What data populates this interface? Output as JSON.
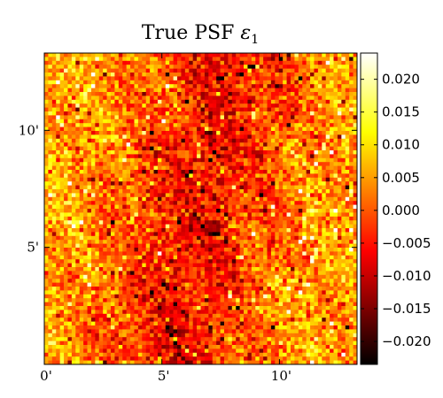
{
  "chart_data": {
    "type": "heatmap",
    "title_main": "True PSF ",
    "title_symbol": "ε",
    "title_subscript": "1",
    "x_ticks": [
      {
        "value": 0,
        "label": "0'"
      },
      {
        "value": 5,
        "label": "5'"
      },
      {
        "value": 10,
        "label": "10'"
      }
    ],
    "y_ticks": [
      {
        "value": 5,
        "label": "5'"
      },
      {
        "value": 10,
        "label": "10'"
      }
    ],
    "xlim": [
      0,
      13.3
    ],
    "ylim": [
      0,
      13.3
    ],
    "colorbar": {
      "colormap": "hot",
      "vmin": -0.0235,
      "vmax": 0.024,
      "ticks": [
        {
          "value": 0.02,
          "label": "0.020"
        },
        {
          "value": 0.015,
          "label": "0.015"
        },
        {
          "value": 0.01,
          "label": "0.010"
        },
        {
          "value": 0.005,
          "label": "0.005"
        },
        {
          "value": 0.0,
          "label": "0.000"
        },
        {
          "value": -0.005,
          "label": "−0.005"
        },
        {
          "value": -0.01,
          "label": "−0.010"
        },
        {
          "value": -0.015,
          "label": "−0.015"
        },
        {
          "value": -0.02,
          "label": "−0.020"
        }
      ]
    },
    "grid": false
  }
}
